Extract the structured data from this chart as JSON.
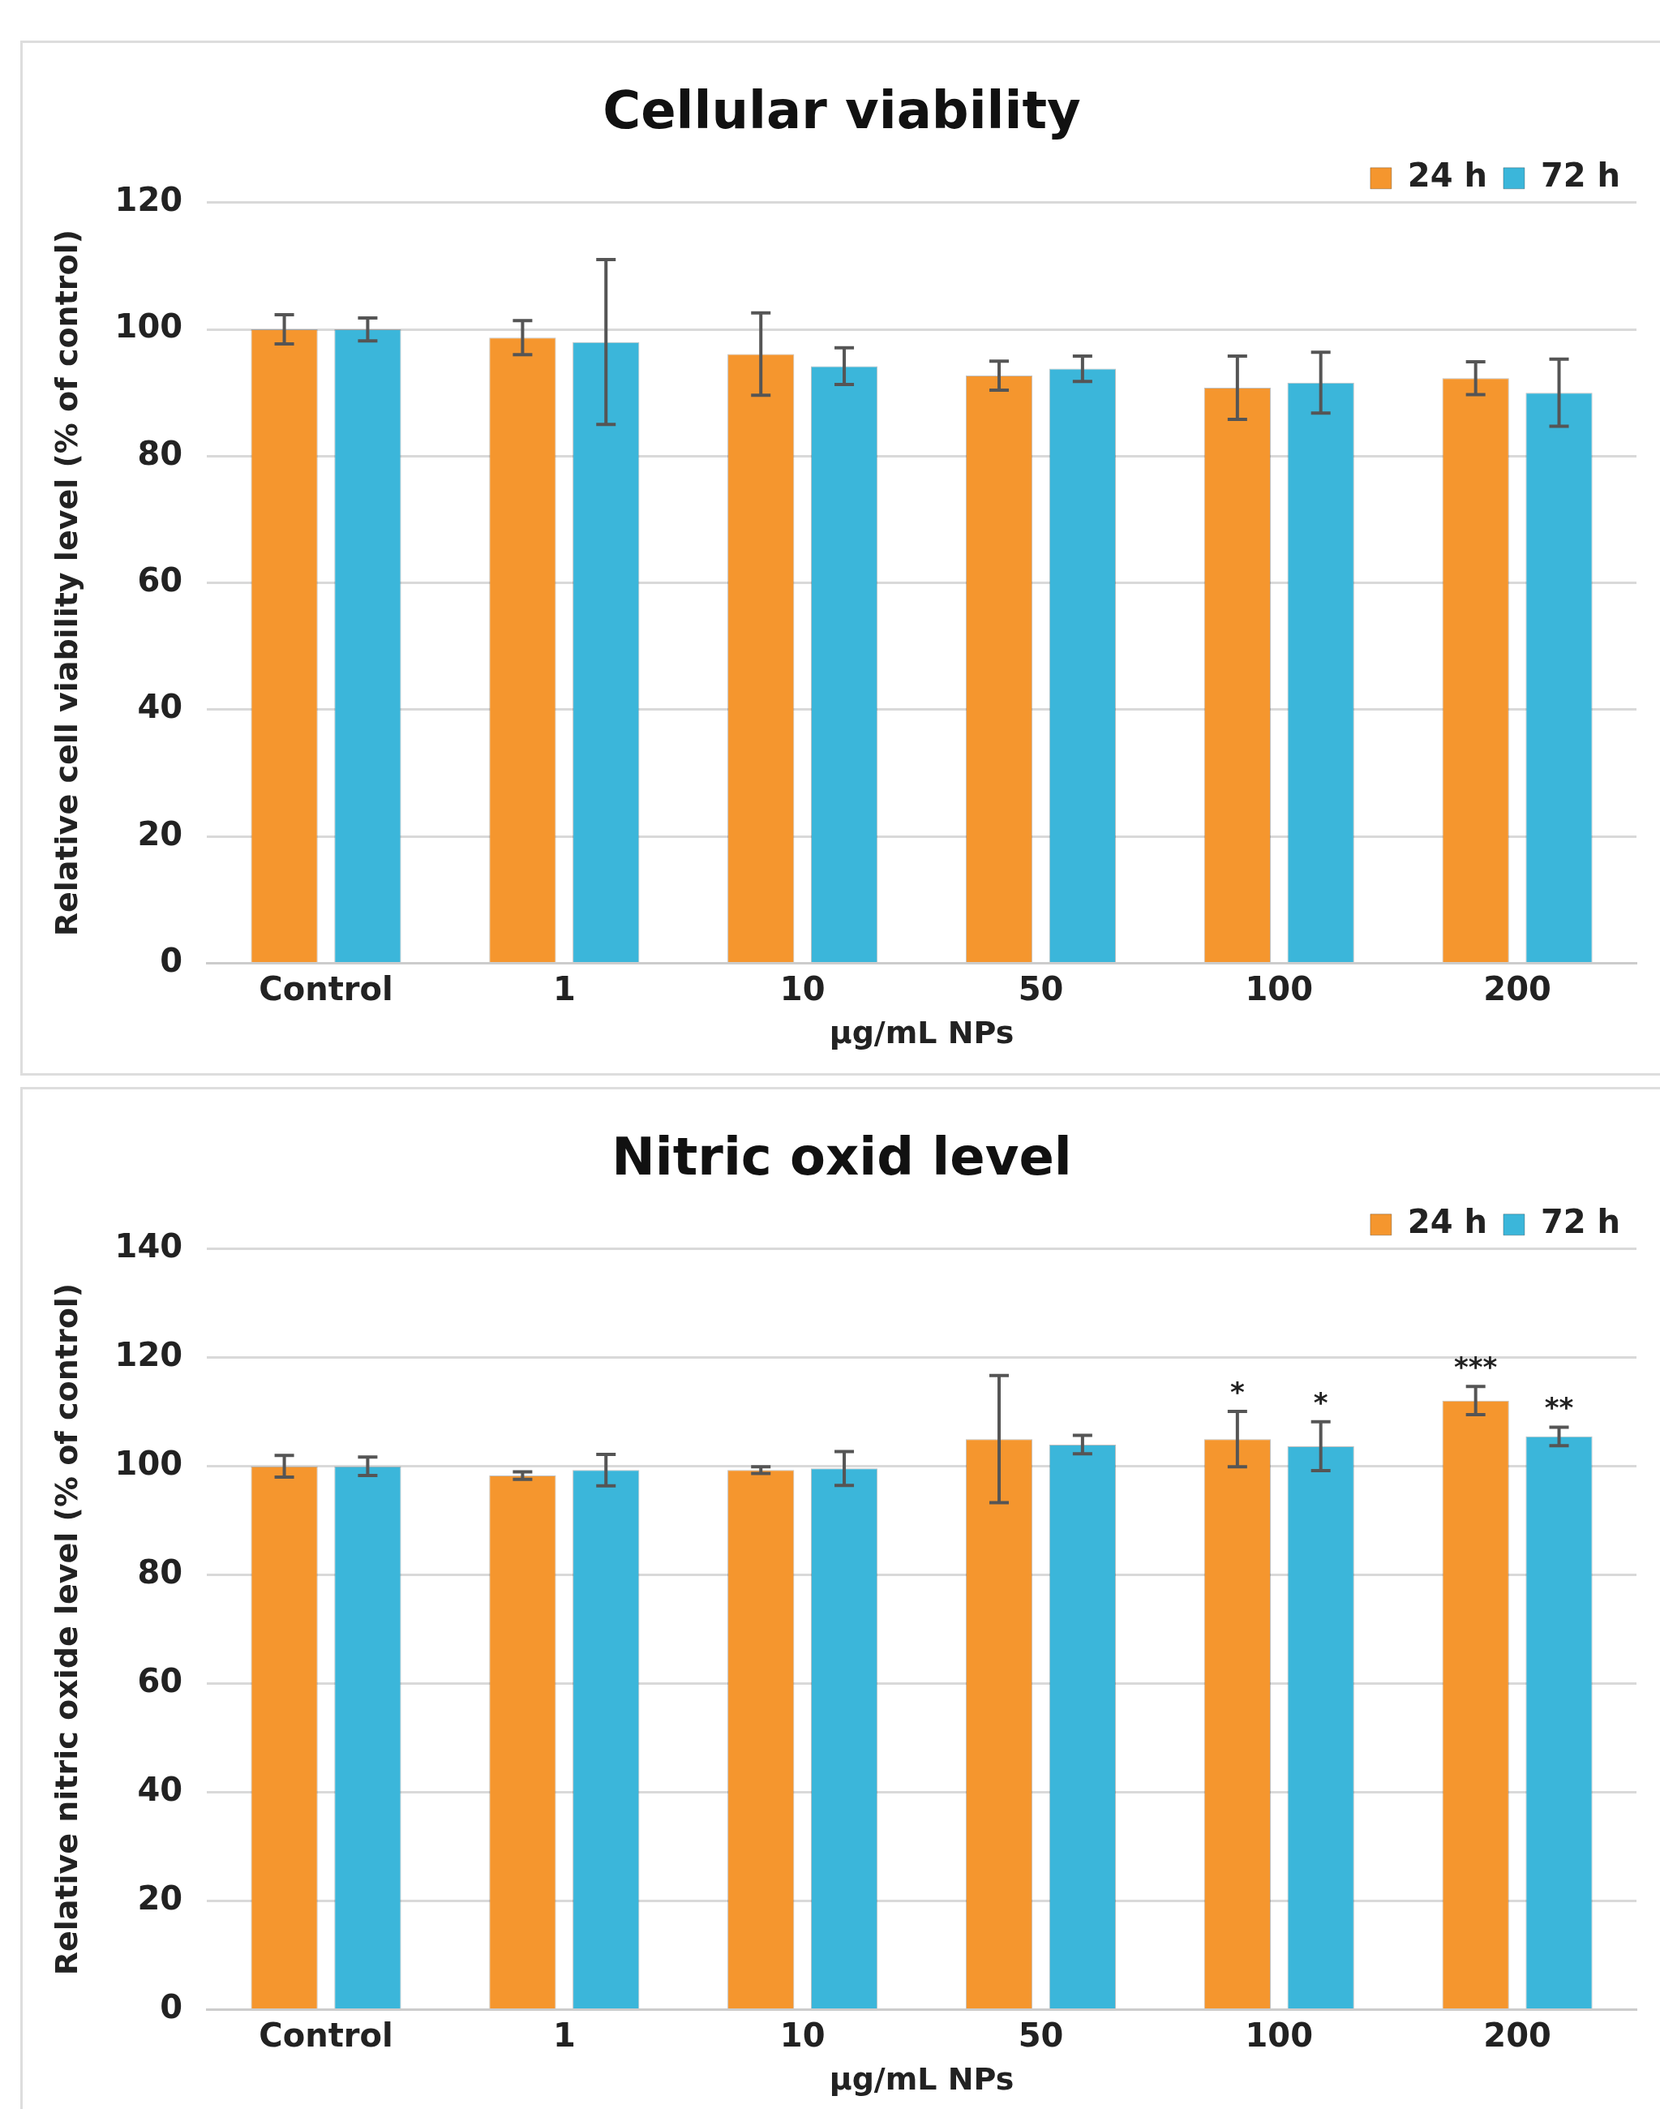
{
  "chart_data": [
    {
      "type": "bar",
      "title": "Cellular viability",
      "xlabel": "µg/mL NPs",
      "ylabel": "Relative cell viability level (% of control)",
      "categories": [
        "Control",
        "1",
        "10",
        "50",
        "100",
        "200"
      ],
      "series": [
        {
          "name": "24 h",
          "color": "#f5962e",
          "values": [
            100,
            98.7,
            96.1,
            92.7,
            90.8,
            92.3
          ],
          "errors": [
            2.3,
            2.7,
            6.5,
            2.3,
            5,
            2.6
          ]
        },
        {
          "name": "72 h",
          "color": "#3bb6da",
          "values": [
            100,
            98,
            94.2,
            93.8,
            91.6,
            90
          ],
          "errors": [
            1.8,
            13,
            2.9,
            2,
            4.8,
            5.3
          ]
        }
      ],
      "ylim": [
        0,
        120
      ],
      "yticks": [
        0,
        20,
        40,
        60,
        80,
        100,
        120
      ],
      "grid": "y",
      "legend": "top right"
    },
    {
      "type": "bar",
      "title": "Nitric oxid level",
      "xlabel": "µg/mL NPs",
      "ylabel": "Relative nitric oxide level (% of control)",
      "categories": [
        "Control",
        "1",
        "10",
        "50",
        "100",
        "200"
      ],
      "series": [
        {
          "name": "24 h",
          "color": "#f5962e",
          "values": [
            100,
            98.3,
            99.3,
            105,
            105,
            112.1
          ],
          "errors": [
            2,
            0.7,
            0.6,
            11.7,
            5.1,
            2.6
          ],
          "value_labels": [
            null,
            null,
            null,
            null,
            "*",
            "***"
          ]
        },
        {
          "name": "72 h",
          "color": "#3bb6da",
          "values": [
            100,
            99.3,
            99.6,
            104,
            103.7,
            105.5
          ],
          "errors": [
            1.7,
            2.9,
            3.1,
            1.7,
            4.5,
            1.7
          ],
          "value_labels": [
            null,
            null,
            null,
            null,
            "*",
            "**"
          ]
        }
      ],
      "ylim": [
        0,
        140
      ],
      "yticks": [
        0,
        20,
        40,
        60,
        80,
        100,
        120,
        140
      ],
      "grid": "y",
      "legend": "top right"
    }
  ]
}
